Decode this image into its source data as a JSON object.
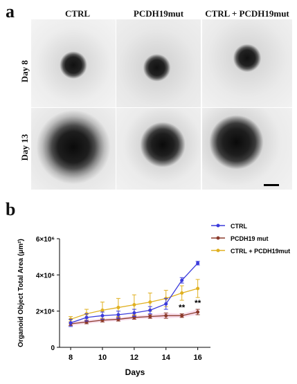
{
  "panel_a": {
    "letter": "a",
    "columns": [
      "CTRL",
      "PCDH19mut",
      "CTRL + PCDH19mut"
    ],
    "rows": [
      "Day 8",
      "Day 13"
    ]
  },
  "panel_b": {
    "letter": "b"
  },
  "chart_data": {
    "type": "line",
    "title": "",
    "xlabel": "Days",
    "ylabel": "Organoid Object Total Area (μm²)",
    "xlim": [
      7.3,
      16.8
    ],
    "ylim": [
      0,
      6000000
    ],
    "xticks": [
      8,
      10,
      12,
      14,
      16
    ],
    "yticks": [
      {
        "value": 0,
        "label": "0"
      },
      {
        "value": 2000000,
        "label": "2×10⁶"
      },
      {
        "value": 4000000,
        "label": "4×10⁶"
      },
      {
        "value": 6000000,
        "label": "6×10⁶"
      }
    ],
    "legend_position": "top-right",
    "series": [
      {
        "name": "CTRL",
        "color": "#3b3bdc",
        "x": [
          8,
          9,
          10,
          11,
          12,
          13,
          14,
          15,
          16
        ],
        "y": [
          1350000,
          1650000,
          1750000,
          1800000,
          1900000,
          2050000,
          2400000,
          3700000,
          4650000
        ],
        "err": [
          200000,
          200000,
          200000,
          200000,
          200000,
          200000,
          300000,
          150000,
          100000
        ]
      },
      {
        "name": "PCDH19 mut",
        "color": "#8b3a2b",
        "x": [
          8,
          9,
          10,
          11,
          12,
          13,
          14,
          15,
          16
        ],
        "y": [
          1300000,
          1400000,
          1500000,
          1550000,
          1650000,
          1700000,
          1750000,
          1750000,
          1950000
        ],
        "err": [
          100000,
          100000,
          100000,
          100000,
          100000,
          100000,
          150000,
          100000,
          150000
        ]
      },
      {
        "name": "CTRL + PCDH19mut",
        "color": "#e0b020",
        "x": [
          8,
          9,
          10,
          11,
          12,
          13,
          14,
          15,
          16
        ],
        "y": [
          1550000,
          1850000,
          2050000,
          2200000,
          2350000,
          2500000,
          2700000,
          3000000,
          3250000
        ],
        "err": [
          150000,
          250000,
          450000,
          500000,
          550000,
          500000,
          450000,
          400000,
          500000
        ]
      }
    ],
    "annotations": [
      {
        "text": "**",
        "x": 15,
        "y": 2050000
      },
      {
        "text": "**",
        "x": 16,
        "y": 2300000
      }
    ]
  }
}
